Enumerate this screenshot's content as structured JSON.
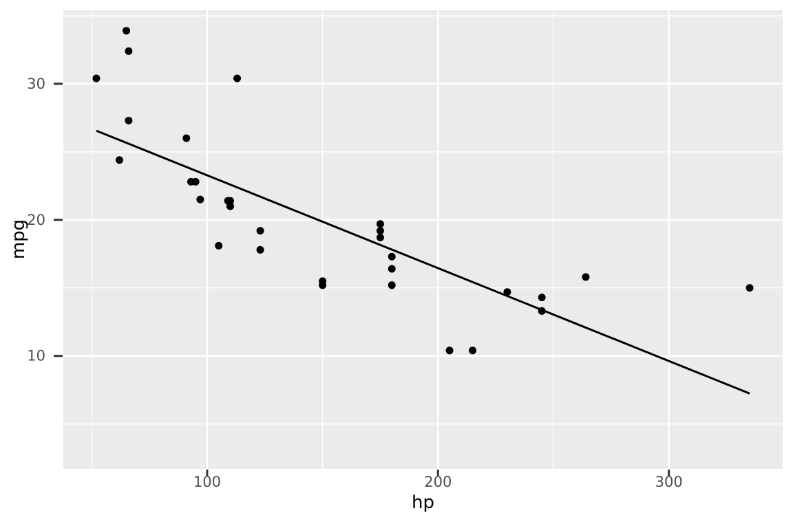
{
  "chart_data": {
    "type": "scatter",
    "title": "",
    "xlabel": "hp",
    "ylabel": "mpg",
    "xlim": [
      37.7,
      349.3
    ],
    "ylim": [
      1.7,
      35.4
    ],
    "x_ticks": [
      100,
      200,
      300
    ],
    "y_ticks": [
      10,
      20,
      30
    ],
    "x_minor_ticks": [
      50,
      150,
      250,
      350
    ],
    "y_minor_ticks": [
      5,
      15,
      25,
      35
    ],
    "grid": true,
    "legend_position": "none",
    "points": [
      [
        110,
        21.0
      ],
      [
        110,
        21.0
      ],
      [
        93,
        22.8
      ],
      [
        110,
        21.4
      ],
      [
        175,
        18.7
      ],
      [
        105,
        18.1
      ],
      [
        245,
        14.3
      ],
      [
        62,
        24.4
      ],
      [
        95,
        22.8
      ],
      [
        123,
        19.2
      ],
      [
        123,
        17.8
      ],
      [
        180,
        16.4
      ],
      [
        180,
        17.3
      ],
      [
        180,
        15.2
      ],
      [
        205,
        10.4
      ],
      [
        215,
        10.4
      ],
      [
        230,
        14.7
      ],
      [
        66,
        32.4
      ],
      [
        52,
        30.4
      ],
      [
        65,
        33.9
      ],
      [
        97,
        21.5
      ],
      [
        150,
        15.5
      ],
      [
        150,
        15.2
      ],
      [
        245,
        13.3
      ],
      [
        175,
        19.2
      ],
      [
        66,
        27.3
      ],
      [
        91,
        26.0
      ],
      [
        113,
        30.4
      ],
      [
        264,
        15.8
      ],
      [
        175,
        19.7
      ],
      [
        335,
        15.0
      ],
      [
        109,
        21.4
      ]
    ],
    "trend_line": {
      "x1": 52,
      "y1": 26.55,
      "x2": 335,
      "y2": 7.24
    },
    "colors": {
      "figure_background": "#FFFFFF",
      "panel_background": "#EBEBEB",
      "gridline": "#FFFFFF",
      "point": "#000000",
      "trend": "#000000",
      "tick_mark": "#333333",
      "tick_label": "#4D4D4D",
      "axis_title": "#000000"
    }
  }
}
